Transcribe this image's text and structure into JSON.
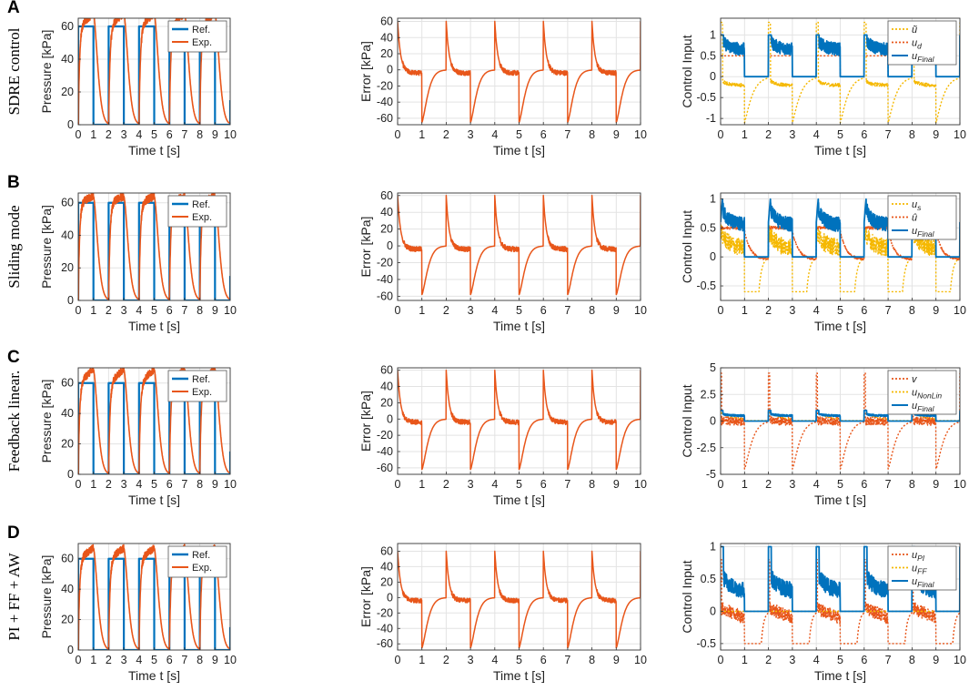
{
  "figure": {
    "time_xlabel": "Time t [s]",
    "pressure_ylabel": "Pressure [kPa]",
    "error_ylabel": "Error [kPa]",
    "control_ylabel": "Control Input"
  },
  "colors": {
    "reference": "#0072BD",
    "experiment": "#E8561A",
    "yellow": "#F5B800",
    "red": "#E8561A",
    "blue": "#0072BD"
  },
  "rows": [
    {
      "letter": "A",
      "label": "SDRE control",
      "control_legend": [
        "ũ",
        "u_d",
        "u_Final"
      ]
    },
    {
      "letter": "B",
      "label": "Sliding mode",
      "control_legend": [
        "u_s",
        "û",
        "u_Final"
      ]
    },
    {
      "letter": "C",
      "label": "Feedback linear.",
      "control_legend": [
        "v",
        "u_NonLin",
        "u_Final"
      ]
    },
    {
      "letter": "D",
      "label": "PI + FF + AW",
      "control_legend": [
        "u_PI",
        "u_FF",
        "u_Final"
      ]
    }
  ],
  "chart_data": [
    {
      "id": "A-pressure",
      "type": "line",
      "xlabel": "Time t [s]",
      "ylabel": "Pressure [kPa]",
      "xlim": [
        0,
        10
      ],
      "ylim": [
        0,
        65
      ],
      "xticks": [
        0,
        1,
        2,
        3,
        4,
        5,
        6,
        7,
        8,
        9,
        10
      ],
      "yticks": [
        0,
        20,
        40,
        60
      ],
      "series": [
        {
          "name": "Ref.",
          "kind": "square",
          "high": 60,
          "low": 0
        },
        {
          "name": "Exp.",
          "kind": "pressure",
          "target": 60,
          "overshoot": 68,
          "noise": 3
        }
      ],
      "legend": [
        "Ref.",
        "Exp."
      ]
    },
    {
      "id": "A-error",
      "type": "line",
      "xlabel": "Time t [s]",
      "ylabel": "Error [kPa]",
      "xlim": [
        0,
        10
      ],
      "ylim": [
        -68,
        64
      ],
      "xticks": [
        0,
        1,
        2,
        3,
        4,
        5,
        6,
        7,
        8,
        9,
        10
      ],
      "yticks": [
        -60,
        -40,
        -20,
        0,
        20,
        40,
        60
      ],
      "series": [
        {
          "name": "Error",
          "kind": "error",
          "peak": 60,
          "trough": -65,
          "noise": 3
        }
      ]
    },
    {
      "id": "A-control",
      "type": "line",
      "xlabel": "Time t [s]",
      "ylabel": "Control Input",
      "xlim": [
        0,
        10
      ],
      "ylim": [
        -1.15,
        1.4
      ],
      "xticks": [
        0,
        1,
        2,
        3,
        4,
        5,
        6,
        7,
        8,
        9,
        10
      ],
      "yticks": [
        -1,
        -0.5,
        0,
        0.5,
        1
      ],
      "yticklabels": [
        "-1",
        "-0.5",
        "0",
        "0.5",
        "1"
      ],
      "series": [
        {
          "name": "ũ",
          "style": "yellow",
          "kind": "sdre_ut"
        },
        {
          "name": "u_d",
          "style": "red",
          "kind": "const_on",
          "level": 0.5
        },
        {
          "name": "u_Final",
          "style": "blue",
          "kind": "sdre_final"
        }
      ],
      "legend": [
        "ũ",
        "u_d",
        "u_Final"
      ]
    },
    {
      "id": "B-pressure",
      "type": "line",
      "xlabel": "Time t [s]",
      "ylabel": "Pressure [kPa]",
      "xlim": [
        0,
        10
      ],
      "ylim": [
        0,
        66
      ],
      "xticks": [
        0,
        1,
        2,
        3,
        4,
        5,
        6,
        7,
        8,
        9,
        10
      ],
      "yticks": [
        0,
        20,
        40,
        60
      ],
      "series": [
        {
          "name": "Ref.",
          "kind": "square",
          "high": 60,
          "low": 0
        },
        {
          "name": "Exp.",
          "kind": "pressure",
          "target": 60,
          "overshoot": 64,
          "noise": 3
        }
      ],
      "legend": [
        "Ref.",
        "Exp."
      ]
    },
    {
      "id": "B-error",
      "type": "line",
      "xlabel": "Time t [s]",
      "ylabel": "Error [kPa]",
      "xlim": [
        0,
        10
      ],
      "ylim": [
        -65,
        63
      ],
      "xticks": [
        0,
        1,
        2,
        3,
        4,
        5,
        6,
        7,
        8,
        9,
        10
      ],
      "yticks": [
        -60,
        -40,
        -20,
        0,
        20,
        40,
        60
      ],
      "series": [
        {
          "name": "Error",
          "kind": "error",
          "peak": 60,
          "trough": -58,
          "noise": 3
        }
      ]
    },
    {
      "id": "B-control",
      "type": "line",
      "xlabel": "Time t [s]",
      "ylabel": "Control Input",
      "xlim": [
        0,
        10
      ],
      "ylim": [
        -0.75,
        1.1
      ],
      "xticks": [
        0,
        1,
        2,
        3,
        4,
        5,
        6,
        7,
        8,
        9,
        10
      ],
      "yticks": [
        -0.5,
        0,
        0.5,
        1
      ],
      "yticklabels": [
        "-0.5",
        "0",
        "0.5",
        "1"
      ],
      "series": [
        {
          "name": "u_s",
          "style": "yellow",
          "kind": "smc_us"
        },
        {
          "name": "û",
          "style": "red",
          "kind": "smc_uh"
        },
        {
          "name": "u_Final",
          "style": "blue",
          "kind": "smc_final"
        }
      ],
      "legend": [
        "u_s",
        "û",
        "u_Final"
      ]
    },
    {
      "id": "C-pressure",
      "type": "line",
      "xlabel": "Time t [s]",
      "ylabel": "Pressure [kPa]",
      "xlim": [
        0,
        10
      ],
      "ylim": [
        0,
        70
      ],
      "xticks": [
        0,
        1,
        2,
        3,
        4,
        5,
        6,
        7,
        8,
        9,
        10
      ],
      "yticks": [
        0,
        20,
        40,
        60
      ],
      "series": [
        {
          "name": "Ref.",
          "kind": "square",
          "high": 60,
          "low": 0
        },
        {
          "name": "Exp.",
          "kind": "pressure",
          "target": 60,
          "overshoot": 69,
          "noise": 3
        }
      ],
      "legend": [
        "Ref.",
        "Exp."
      ]
    },
    {
      "id": "C-error",
      "type": "line",
      "xlabel": "Time t [s]",
      "ylabel": "Error [kPa]",
      "xlim": [
        0,
        10
      ],
      "ylim": [
        -68,
        63
      ],
      "xticks": [
        0,
        1,
        2,
        3,
        4,
        5,
        6,
        7,
        8,
        9,
        10
      ],
      "yticks": [
        -60,
        -40,
        -20,
        0,
        20,
        40,
        60
      ],
      "series": [
        {
          "name": "Error",
          "kind": "error",
          "peak": 60,
          "trough": -62,
          "noise": 3
        }
      ]
    },
    {
      "id": "C-control",
      "type": "line",
      "xlabel": "Time t [s]",
      "ylabel": "Control Input",
      "xlim": [
        0,
        10
      ],
      "ylim": [
        -5,
        5
      ],
      "xticks": [
        0,
        1,
        2,
        3,
        4,
        5,
        6,
        7,
        8,
        9,
        10
      ],
      "yticks": [
        -5,
        -2.5,
        0,
        2.5,
        5
      ],
      "yticklabels": [
        "-5",
        "-2.5",
        "0",
        "2.5",
        "5"
      ],
      "series": [
        {
          "name": "v",
          "style": "red",
          "kind": "fl_v"
        },
        {
          "name": "u_NonLin",
          "style": "yellow",
          "kind": "fl_nl"
        },
        {
          "name": "u_Final",
          "style": "blue",
          "kind": "fl_final"
        }
      ],
      "legend": [
        "v",
        "u_NonLin",
        "u_Final"
      ]
    },
    {
      "id": "D-pressure",
      "type": "line",
      "xlabel": "Time t [s]",
      "ylabel": "Pressure [kPa]",
      "xlim": [
        0,
        10
      ],
      "ylim": [
        0,
        70
      ],
      "xticks": [
        0,
        1,
        2,
        3,
        4,
        5,
        6,
        7,
        8,
        9,
        10
      ],
      "yticks": [
        0,
        20,
        40,
        60
      ],
      "series": [
        {
          "name": "Ref.",
          "kind": "square",
          "high": 60,
          "low": 0
        },
        {
          "name": "Exp.",
          "kind": "pressure",
          "target": 60,
          "overshoot": 67,
          "noise": 3
        }
      ],
      "legend": [
        "Ref.",
        "Exp."
      ]
    },
    {
      "id": "D-error",
      "type": "line",
      "xlabel": "Time t [s]",
      "ylabel": "Error [kPa]",
      "xlim": [
        0,
        10
      ],
      "ylim": [
        -68,
        70
      ],
      "xticks": [
        0,
        1,
        2,
        3,
        4,
        5,
        6,
        7,
        8,
        9,
        10
      ],
      "yticks": [
        -60,
        -40,
        -20,
        0,
        20,
        40,
        60
      ],
      "series": [
        {
          "name": "Error",
          "kind": "error",
          "peak": 60,
          "trough": -65,
          "noise": 3
        }
      ]
    },
    {
      "id": "D-control",
      "type": "line",
      "xlabel": "Time t [s]",
      "ylabel": "Control Input",
      "xlim": [
        0,
        10
      ],
      "ylim": [
        -0.6,
        1.05
      ],
      "xticks": [
        0,
        1,
        2,
        3,
        4,
        5,
        6,
        7,
        8,
        9,
        10
      ],
      "yticks": [
        -0.5,
        0,
        0.5,
        1
      ],
      "yticklabels": [
        "-0.5",
        "0",
        "0.5",
        "1"
      ],
      "series": [
        {
          "name": "u_PI",
          "style": "red",
          "kind": "pi_pi"
        },
        {
          "name": "u_FF",
          "style": "yellow",
          "kind": "pi_ff"
        },
        {
          "name": "u_Final",
          "style": "blue",
          "kind": "pi_final"
        }
      ],
      "legend": [
        "u_PI",
        "u_FF",
        "u_Final"
      ]
    }
  ]
}
